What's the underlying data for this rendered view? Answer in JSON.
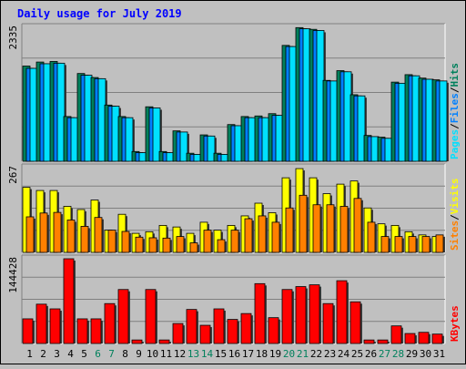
{
  "chart_data": [
    {
      "type": "bar",
      "title": "Daily usage for July 2019",
      "panel": "pages-files-hits",
      "y_max_label": "2335",
      "ylim": [
        0,
        2335
      ],
      "legend": [
        {
          "text": "Pages",
          "color": "#00e0ff"
        },
        {
          "text": "Files",
          "color": "#0080ff"
        },
        {
          "text": "Hits",
          "color": "#00805c"
        }
      ],
      "categories": [
        "1",
        "2",
        "3",
        "4",
        "5",
        "6",
        "7",
        "8",
        "9",
        "10",
        "11",
        "12",
        "13",
        "14",
        "15",
        "16",
        "17",
        "18",
        "19",
        "20",
        "21",
        "22",
        "23",
        "24",
        "25",
        "26",
        "27",
        "28",
        "29",
        "30",
        "31"
      ],
      "series": [
        {
          "name": "Hits",
          "color": "#00805c",
          "values": [
            1660,
            1730,
            1740,
            780,
            1530,
            1460,
            980,
            780,
            170,
            950,
            170,
            530,
            140,
            460,
            140,
            640,
            780,
            790,
            830,
            2020,
            2330,
            2300,
            1410,
            1580,
            1160,
            450,
            420,
            1380,
            1510,
            1450,
            1420
          ]
        },
        {
          "name": "Files",
          "color": "#0080ff",
          "values": [
            1620,
            1700,
            1710,
            760,
            1500,
            1440,
            960,
            760,
            150,
            930,
            150,
            510,
            120,
            440,
            120,
            620,
            760,
            760,
            800,
            2000,
            2310,
            2280,
            1400,
            1560,
            1140,
            430,
            400,
            1360,
            1490,
            1430,
            1400
          ]
        },
        {
          "name": "Pages",
          "color": "#00e0ff",
          "values": [
            1620,
            1700,
            1710,
            760,
            1500,
            1440,
            960,
            760,
            150,
            930,
            150,
            510,
            120,
            440,
            120,
            620,
            760,
            760,
            800,
            2000,
            2310,
            2280,
            1400,
            1560,
            1140,
            430,
            400,
            1360,
            1490,
            1430,
            1400
          ]
        }
      ]
    },
    {
      "type": "bar",
      "panel": "sites-visits",
      "y_max_label": "267",
      "ylim": [
        0,
        267
      ],
      "legend": [
        {
          "text": "Sites",
          "color": "#ff8000"
        },
        {
          "text": "Visits",
          "color": "#ffff00"
        }
      ],
      "categories": [
        "1",
        "2",
        "3",
        "4",
        "5",
        "6",
        "7",
        "8",
        "9",
        "10",
        "11",
        "12",
        "13",
        "14",
        "15",
        "16",
        "17",
        "18",
        "19",
        "20",
        "21",
        "22",
        "23",
        "24",
        "25",
        "26",
        "27",
        "28",
        "29",
        "30",
        "31"
      ],
      "series": [
        {
          "name": "Visits",
          "color": "#ffff00",
          "values": [
            205,
            195,
            195,
            145,
            135,
            165,
            70,
            120,
            60,
            65,
            85,
            80,
            60,
            95,
            70,
            85,
            115,
            155,
            125,
            235,
            264,
            235,
            185,
            215,
            225,
            140,
            90,
            85,
            65,
            55,
            50
          ]
        },
        {
          "name": "Sites",
          "color": "#ff8000",
          "values": [
            112,
            124,
            126,
            102,
            82,
            110,
            70,
            66,
            48,
            46,
            45,
            50,
            30,
            70,
            40,
            70,
            106,
            115,
            95,
            140,
            180,
            150,
            150,
            145,
            170,
            95,
            50,
            50,
            50,
            50,
            55
          ]
        }
      ]
    },
    {
      "type": "bar",
      "panel": "kbytes",
      "y_max_label": "144428",
      "ylim": [
        0,
        144428
      ],
      "legend": [
        {
          "text": "KBytes",
          "color": "#ff0000"
        }
      ],
      "categories": [
        "1",
        "2",
        "3",
        "4",
        "5",
        "6",
        "7",
        "8",
        "9",
        "10",
        "11",
        "12",
        "13",
        "14",
        "15",
        "16",
        "17",
        "18",
        "19",
        "20",
        "21",
        "22",
        "23",
        "24",
        "25",
        "26",
        "27",
        "28",
        "29",
        "30",
        "31"
      ],
      "series": [
        {
          "name": "KBytes",
          "color": "#ff0000",
          "values": [
            42000,
            67000,
            59000,
            144428,
            42000,
            42000,
            68000,
            92000,
            6000,
            92000,
            6000,
            34000,
            58000,
            31000,
            59000,
            41000,
            51000,
            102000,
            44000,
            92000,
            97000,
            100000,
            68000,
            107000,
            71000,
            6000,
            6000,
            30000,
            17000,
            19000,
            16000
          ]
        }
      ]
    }
  ],
  "x_axis": {
    "weekend_days": [
      6,
      7,
      13,
      14,
      20,
      21,
      27,
      28
    ],
    "weekend_color": "#00805c",
    "weekday_color": "#000080"
  },
  "colors": {
    "background": "#c0c0c0",
    "title": "#0000ff",
    "bar_outline": "#000000"
  }
}
